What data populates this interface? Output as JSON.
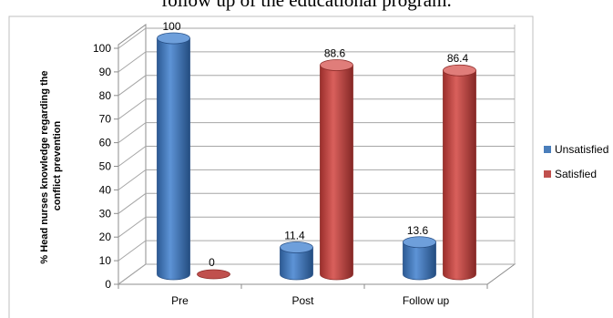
{
  "caption": "follow up of the educational program.",
  "chart_data": {
    "type": "bar",
    "style": "3d-cylinder",
    "categories": [
      "Pre",
      "Post",
      "Follow up"
    ],
    "series": [
      {
        "name": "Unsatisfied",
        "values": [
          100,
          11.4,
          13.6
        ],
        "color": "#4a7ebb"
      },
      {
        "name": "Satisfied",
        "values": [
          0,
          88.6,
          86.4
        ],
        "color": "#c0504d"
      }
    ],
    "data_labels": [
      [
        "100",
        "11.4",
        "13.6"
      ],
      [
        "0",
        "88.6",
        "86.4"
      ]
    ],
    "ylabel_lines": [
      "% Head nurses knowledge regarding the",
      "conflict prevention"
    ],
    "yticks": [
      "0",
      "10",
      "20",
      "30",
      "40",
      "50",
      "60",
      "70",
      "80",
      "90",
      "100"
    ],
    "ylim": [
      0,
      100
    ],
    "grid": true,
    "legend_position": "right"
  }
}
